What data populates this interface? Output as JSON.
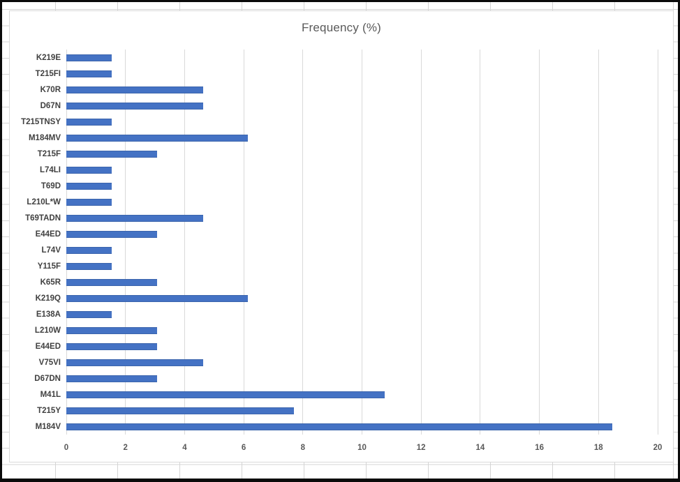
{
  "window": {
    "frame_color": "#0a0a0a",
    "sheet_gridline_color": "#d4d4d4"
  },
  "chart_data": {
    "type": "bar",
    "orientation": "horizontal",
    "title": "Frequency (%)",
    "categories": [
      "K219E",
      "T215FI",
      "K70R",
      "D67N",
      "T215TNSY",
      "M184MV",
      "T215F",
      "L74LI",
      "T69D",
      "L210L*W",
      "T69TADN",
      "E44ED",
      "L74V",
      "Y115F",
      "K65R",
      "K219Q",
      "E138A",
      "L210W",
      "E44ED",
      "V75VI",
      "D67DN",
      "M41L",
      "T215Y",
      "M184V"
    ],
    "values": [
      1.54,
      1.54,
      4.62,
      4.62,
      1.54,
      6.15,
      3.08,
      1.54,
      1.54,
      1.54,
      4.62,
      3.08,
      1.54,
      1.54,
      3.08,
      6.15,
      1.54,
      3.08,
      3.08,
      4.62,
      3.08,
      10.77,
      7.69,
      18.46
    ],
    "xlim": [
      0,
      20
    ],
    "x_ticks": [
      "0",
      "2",
      "4",
      "6",
      "8",
      "10",
      "12",
      "14",
      "16",
      "18",
      "20"
    ],
    "grid": "vertical",
    "legend": "none",
    "bar_color": "#4472C4",
    "plot_gridline_color": "#d9d9d9",
    "title_color": "#595959",
    "category_label_color": "#404040",
    "tick_label_color": "#595959"
  }
}
